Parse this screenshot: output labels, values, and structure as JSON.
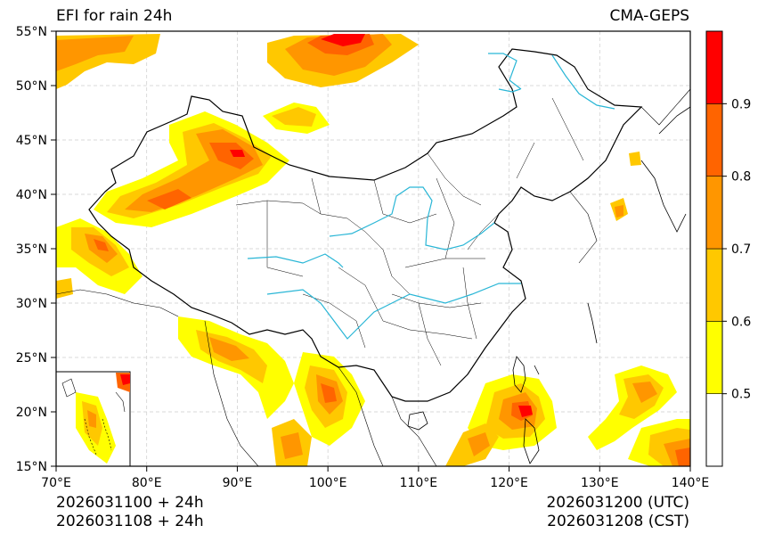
{
  "title_left": "EFI for rain 24h",
  "title_right": "CMA-GEPS",
  "footer_left": [
    "2026031100 + 24h",
    "2026031108 + 24h"
  ],
  "footer_right": [
    "2026031200 (UTC)",
    "2026031208 (CST)"
  ],
  "axes": {
    "lon_ticks": [
      "70°E",
      "80°E",
      "90°E",
      "100°E",
      "110°E",
      "120°E",
      "130°E",
      "140°E"
    ],
    "lat_ticks": [
      "55°N",
      "50°N",
      "45°N",
      "40°N",
      "35°N",
      "30°N",
      "25°N",
      "20°N",
      "15°N"
    ]
  },
  "colorbar": {
    "levels": [
      0.5,
      0.6,
      0.7,
      0.8,
      0.9
    ],
    "labels": [
      "0.5",
      "0.6",
      "0.7",
      "0.8",
      "0.9"
    ],
    "colors": [
      "#ffffff",
      "#ffff00",
      "#ffc800",
      "#ff9600",
      "#ff6400",
      "#ff0000"
    ]
  },
  "colors": {
    "river": "#29b6d6",
    "border": "#000000",
    "grid": "#cccccc"
  }
}
